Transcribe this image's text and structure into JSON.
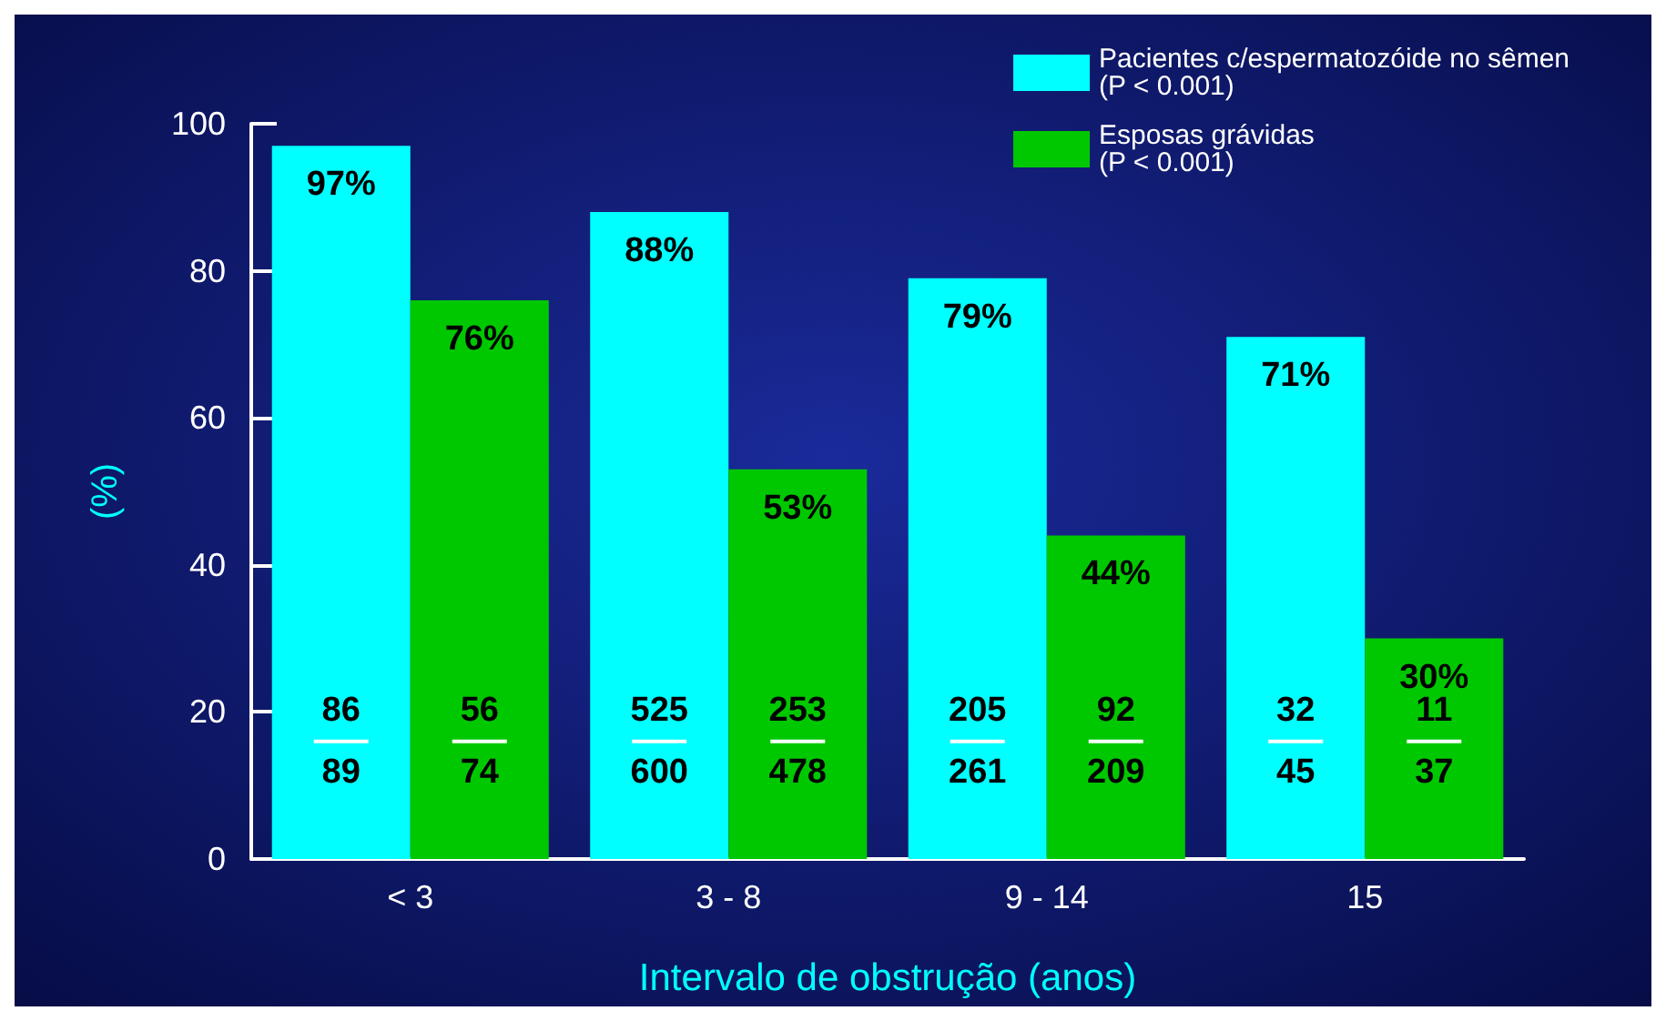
{
  "chart_data": {
    "type": "bar",
    "xlabel": "Intervalo de obstrução (anos)",
    "ylabel": "(%)",
    "categories": [
      "< 3",
      "3 - 8",
      "9 - 14",
      "15"
    ],
    "series": [
      {
        "name": "Pacientes c/espermatozóide no sêmen\n(P < 0.001)",
        "color": "#00ffff",
        "values": [
          97,
          88,
          79,
          71
        ],
        "value_labels": [
          "97%",
          "88%",
          "79%",
          "71%"
        ]
      },
      {
        "name": "Esposas grávidas\n(P < 0.001)",
        "color": "#00c800",
        "values": [
          76,
          53,
          44,
          30
        ],
        "value_labels": [
          "76%",
          "53%",
          "44%",
          "30%"
        ]
      }
    ],
    "ylim": [
      0,
      100
    ],
    "yticks": [
      0,
      20,
      40,
      60,
      80,
      100
    ],
    "grid": false,
    "legend": "top right",
    "annotations": [
      {
        "text": "86\n89",
        "x": "< 3",
        "y": 16
      },
      {
        "text": "56\n74",
        "x": "< 3",
        "y": 16
      },
      {
        "text": "525\n600",
        "x": "3 - 8",
        "y": 16
      },
      {
        "text": "253\n478",
        "x": "3 - 8",
        "y": 16
      },
      {
        "text": "205\n261",
        "x": "9 - 14",
        "y": 16
      },
      {
        "text": "92\n209",
        "x": "9 - 14",
        "y": 16
      },
      {
        "text": "32\n45",
        "x": "15",
        "y": 16
      },
      {
        "text": "11\n37",
        "x": "15",
        "y": 16
      }
    ]
  }
}
